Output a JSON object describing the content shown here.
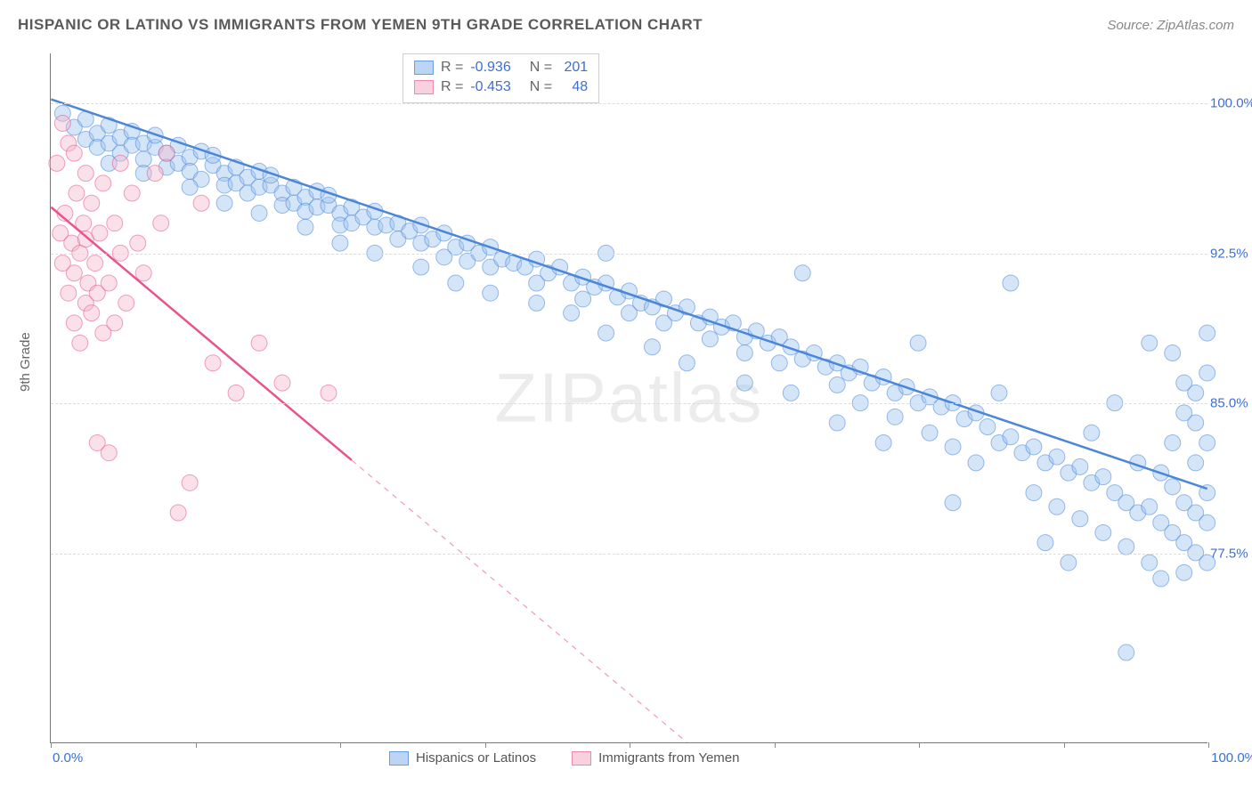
{
  "title": "HISPANIC OR LATINO VS IMMIGRANTS FROM YEMEN 9TH GRADE CORRELATION CHART",
  "source": "Source: ZipAtlas.com",
  "watermark": "ZIPatlas",
  "ylabel": "9th Grade",
  "chart": {
    "type": "scatter",
    "xlim": [
      0,
      100
    ],
    "ylim": [
      68,
      102.5
    ],
    "x_ticks": [
      0,
      12.5,
      25,
      37.5,
      50,
      62.5,
      75,
      87.5,
      100
    ],
    "x_tick_labels": {
      "0": "0.0%",
      "100": "100.0%"
    },
    "y_gridlines": [
      77.5,
      85.0,
      92.5,
      100.0
    ],
    "y_tick_labels": [
      "77.5%",
      "85.0%",
      "92.5%",
      "100.0%"
    ],
    "background_color": "#ffffff",
    "grid_color": "#dcdcdc",
    "axis_color": "#777777",
    "label_color": "#3b6fd6",
    "marker_radius": 9,
    "marker_opacity": 0.42,
    "line_width": 2.5
  },
  "series": [
    {
      "name": "Hispanics or Latinos",
      "color_fill": "#9bc0ef",
      "color_stroke": "#4b86d8",
      "swatch_fill": "#bcd5f4",
      "swatch_border": "#6a9ee4",
      "R": "-0.936",
      "N": "201",
      "trend": {
        "x1": 0,
        "y1": 100.2,
        "x2": 100,
        "y2": 80.7,
        "dashed_from_x": null
      },
      "points": [
        [
          1,
          99.5
        ],
        [
          2,
          98.8
        ],
        [
          3,
          99.2
        ],
        [
          3,
          98.2
        ],
        [
          4,
          98.5
        ],
        [
          4,
          97.8
        ],
        [
          5,
          98.9
        ],
        [
          5,
          98.0
        ],
        [
          6,
          98.3
        ],
        [
          6,
          97.5
        ],
        [
          7,
          98.6
        ],
        [
          7,
          97.9
        ],
        [
          8,
          98.0
        ],
        [
          8,
          97.2
        ],
        [
          9,
          97.8
        ],
        [
          9,
          98.4
        ],
        [
          10,
          97.5
        ],
        [
          10,
          96.8
        ],
        [
          11,
          97.9
        ],
        [
          11,
          97.0
        ],
        [
          12,
          97.3
        ],
        [
          12,
          96.6
        ],
        [
          13,
          97.6
        ],
        [
          13,
          96.2
        ],
        [
          14,
          96.9
        ],
        [
          14,
          97.4
        ],
        [
          15,
          96.5
        ],
        [
          15,
          95.9
        ],
        [
          16,
          96.8
        ],
        [
          16,
          96.0
        ],
        [
          17,
          96.3
        ],
        [
          17,
          95.5
        ],
        [
          18,
          96.6
        ],
        [
          18,
          95.8
        ],
        [
          19,
          95.9
        ],
        [
          19,
          96.4
        ],
        [
          20,
          95.5
        ],
        [
          20,
          94.9
        ],
        [
          21,
          95.8
        ],
        [
          21,
          95.0
        ],
        [
          22,
          95.3
        ],
        [
          22,
          94.6
        ],
        [
          23,
          95.6
        ],
        [
          23,
          94.8
        ],
        [
          24,
          94.9
        ],
        [
          24,
          95.4
        ],
        [
          25,
          94.5
        ],
        [
          25,
          93.9
        ],
        [
          26,
          94.8
        ],
        [
          26,
          94.0
        ],
        [
          27,
          94.3
        ],
        [
          28,
          94.6
        ],
        [
          28,
          93.8
        ],
        [
          29,
          93.9
        ],
        [
          30,
          94.0
        ],
        [
          30,
          93.2
        ],
        [
          31,
          93.6
        ],
        [
          32,
          93.9
        ],
        [
          32,
          93.0
        ],
        [
          33,
          93.2
        ],
        [
          34,
          93.5
        ],
        [
          34,
          92.3
        ],
        [
          35,
          92.8
        ],
        [
          36,
          93.0
        ],
        [
          36,
          92.1
        ],
        [
          37,
          92.5
        ],
        [
          38,
          92.8
        ],
        [
          38,
          91.8
        ],
        [
          39,
          92.2
        ],
        [
          40,
          92.0
        ],
        [
          41,
          91.8
        ],
        [
          42,
          92.2
        ],
        [
          42,
          91.0
        ],
        [
          43,
          91.5
        ],
        [
          44,
          91.8
        ],
        [
          45,
          91.0
        ],
        [
          46,
          91.3
        ],
        [
          46,
          90.2
        ],
        [
          47,
          90.8
        ],
        [
          48,
          91.0
        ],
        [
          48,
          92.5
        ],
        [
          49,
          90.3
        ],
        [
          50,
          90.6
        ],
        [
          50,
          89.5
        ],
        [
          51,
          90.0
        ],
        [
          52,
          89.8
        ],
        [
          53,
          90.2
        ],
        [
          53,
          89.0
        ],
        [
          54,
          89.5
        ],
        [
          55,
          89.8
        ],
        [
          56,
          89.0
        ],
        [
          57,
          89.3
        ],
        [
          57,
          88.2
        ],
        [
          58,
          88.8
        ],
        [
          59,
          89.0
        ],
        [
          60,
          88.3
        ],
        [
          60,
          87.5
        ],
        [
          61,
          88.6
        ],
        [
          62,
          88.0
        ],
        [
          63,
          88.3
        ],
        [
          63,
          87.0
        ],
        [
          64,
          87.8
        ],
        [
          65,
          91.5
        ],
        [
          65,
          87.2
        ],
        [
          66,
          87.5
        ],
        [
          67,
          86.8
        ],
        [
          68,
          87.0
        ],
        [
          68,
          85.9
        ],
        [
          69,
          86.5
        ],
        [
          70,
          86.8
        ],
        [
          70,
          85.0
        ],
        [
          71,
          86.0
        ],
        [
          72,
          86.3
        ],
        [
          73,
          85.5
        ],
        [
          73,
          84.3
        ],
        [
          74,
          85.8
        ],
        [
          75,
          85.0
        ],
        [
          75,
          88.0
        ],
        [
          76,
          85.3
        ],
        [
          76,
          83.5
        ],
        [
          77,
          84.8
        ],
        [
          78,
          85.0
        ],
        [
          78,
          82.8
        ],
        [
          79,
          84.2
        ],
        [
          80,
          84.5
        ],
        [
          80,
          82.0
        ],
        [
          81,
          83.8
        ],
        [
          82,
          83.0
        ],
        [
          82,
          85.5
        ],
        [
          83,
          83.3
        ],
        [
          83,
          91.0
        ],
        [
          84,
          82.5
        ],
        [
          85,
          82.8
        ],
        [
          85,
          80.5
        ],
        [
          86,
          82.0
        ],
        [
          87,
          82.3
        ],
        [
          87,
          79.8
        ],
        [
          88,
          81.5
        ],
        [
          89,
          81.8
        ],
        [
          89,
          79.2
        ],
        [
          90,
          81.0
        ],
        [
          90,
          83.5
        ],
        [
          91,
          81.3
        ],
        [
          91,
          78.5
        ],
        [
          92,
          80.5
        ],
        [
          92,
          85.0
        ],
        [
          93,
          80.0
        ],
        [
          93,
          77.8
        ],
        [
          94,
          79.5
        ],
        [
          94,
          82.0
        ],
        [
          95,
          79.8
        ],
        [
          95,
          77.0
        ],
        [
          95,
          88.0
        ],
        [
          96,
          79.0
        ],
        [
          96,
          81.5
        ],
        [
          96,
          76.2
        ],
        [
          97,
          78.5
        ],
        [
          97,
          80.8
        ],
        [
          97,
          83.0
        ],
        [
          97,
          87.5
        ],
        [
          98,
          78.0
        ],
        [
          98,
          80.0
        ],
        [
          98,
          76.5
        ],
        [
          98,
          84.5
        ],
        [
          98,
          86.0
        ],
        [
          99,
          77.5
        ],
        [
          99,
          79.5
        ],
        [
          99,
          82.0
        ],
        [
          99,
          85.5
        ],
        [
          99,
          84.0
        ],
        [
          100,
          77.0
        ],
        [
          100,
          79.0
        ],
        [
          100,
          80.5
        ],
        [
          100,
          83.0
        ],
        [
          100,
          86.5
        ],
        [
          100,
          88.5
        ],
        [
          93,
          72.5
        ],
        [
          88,
          77.0
        ],
        [
          86,
          78.0
        ],
        [
          78,
          80.0
        ],
        [
          72,
          83.0
        ],
        [
          68,
          84.0
        ],
        [
          64,
          85.5
        ],
        [
          60,
          86.0
        ],
        [
          55,
          87.0
        ],
        [
          52,
          87.8
        ],
        [
          48,
          88.5
        ],
        [
          45,
          89.5
        ],
        [
          42,
          90.0
        ],
        [
          38,
          90.5
        ],
        [
          35,
          91.0
        ],
        [
          32,
          91.8
        ],
        [
          28,
          92.5
        ],
        [
          25,
          93.0
        ],
        [
          22,
          93.8
        ],
        [
          18,
          94.5
        ],
        [
          15,
          95.0
        ],
        [
          12,
          95.8
        ],
        [
          8,
          96.5
        ],
        [
          5,
          97.0
        ]
      ]
    },
    {
      "name": "Immigrants from Yemen",
      "color_fill": "#f4b8cb",
      "color_stroke": "#e8548b",
      "swatch_fill": "#f8d0de",
      "swatch_border": "#ef89ad",
      "R": "-0.453",
      "N": "48",
      "trend": {
        "x1": 0,
        "y1": 94.8,
        "x2": 55,
        "y2": 68.0,
        "dashed_from_x": 26
      },
      "points": [
        [
          0.5,
          97.0
        ],
        [
          0.8,
          93.5
        ],
        [
          1,
          99.0
        ],
        [
          1,
          92.0
        ],
        [
          1.2,
          94.5
        ],
        [
          1.5,
          98.0
        ],
        [
          1.5,
          90.5
        ],
        [
          1.8,
          93.0
        ],
        [
          2,
          97.5
        ],
        [
          2,
          91.5
        ],
        [
          2,
          89.0
        ],
        [
          2.2,
          95.5
        ],
        [
          2.5,
          92.5
        ],
        [
          2.5,
          88.0
        ],
        [
          2.8,
          94.0
        ],
        [
          3,
          96.5
        ],
        [
          3,
          90.0
        ],
        [
          3,
          93.2
        ],
        [
          3.2,
          91.0
        ],
        [
          3.5,
          89.5
        ],
        [
          3.5,
          95.0
        ],
        [
          3.8,
          92.0
        ],
        [
          4,
          83.0
        ],
        [
          4,
          90.5
        ],
        [
          4.2,
          93.5
        ],
        [
          4.5,
          88.5
        ],
        [
          4.5,
          96.0
        ],
        [
          5,
          91.0
        ],
        [
          5,
          82.5
        ],
        [
          5.5,
          94.0
        ],
        [
          5.5,
          89.0
        ],
        [
          6,
          92.5
        ],
        [
          6,
          97.0
        ],
        [
          6.5,
          90.0
        ],
        [
          7,
          95.5
        ],
        [
          7.5,
          93.0
        ],
        [
          8,
          91.5
        ],
        [
          9,
          96.5
        ],
        [
          9.5,
          94.0
        ],
        [
          10,
          97.5
        ],
        [
          11,
          79.5
        ],
        [
          12,
          81.0
        ],
        [
          13,
          95.0
        ],
        [
          14,
          87.0
        ],
        [
          16,
          85.5
        ],
        [
          18,
          88.0
        ],
        [
          20,
          86.0
        ],
        [
          24,
          85.5
        ]
      ]
    }
  ],
  "bottom_legend": [
    {
      "label": "Hispanics or Latinos",
      "swatch_fill": "#bcd5f4",
      "swatch_border": "#6a9ee4"
    },
    {
      "label": "Immigrants from Yemen",
      "swatch_fill": "#f8d0de",
      "swatch_border": "#ef89ad"
    }
  ]
}
